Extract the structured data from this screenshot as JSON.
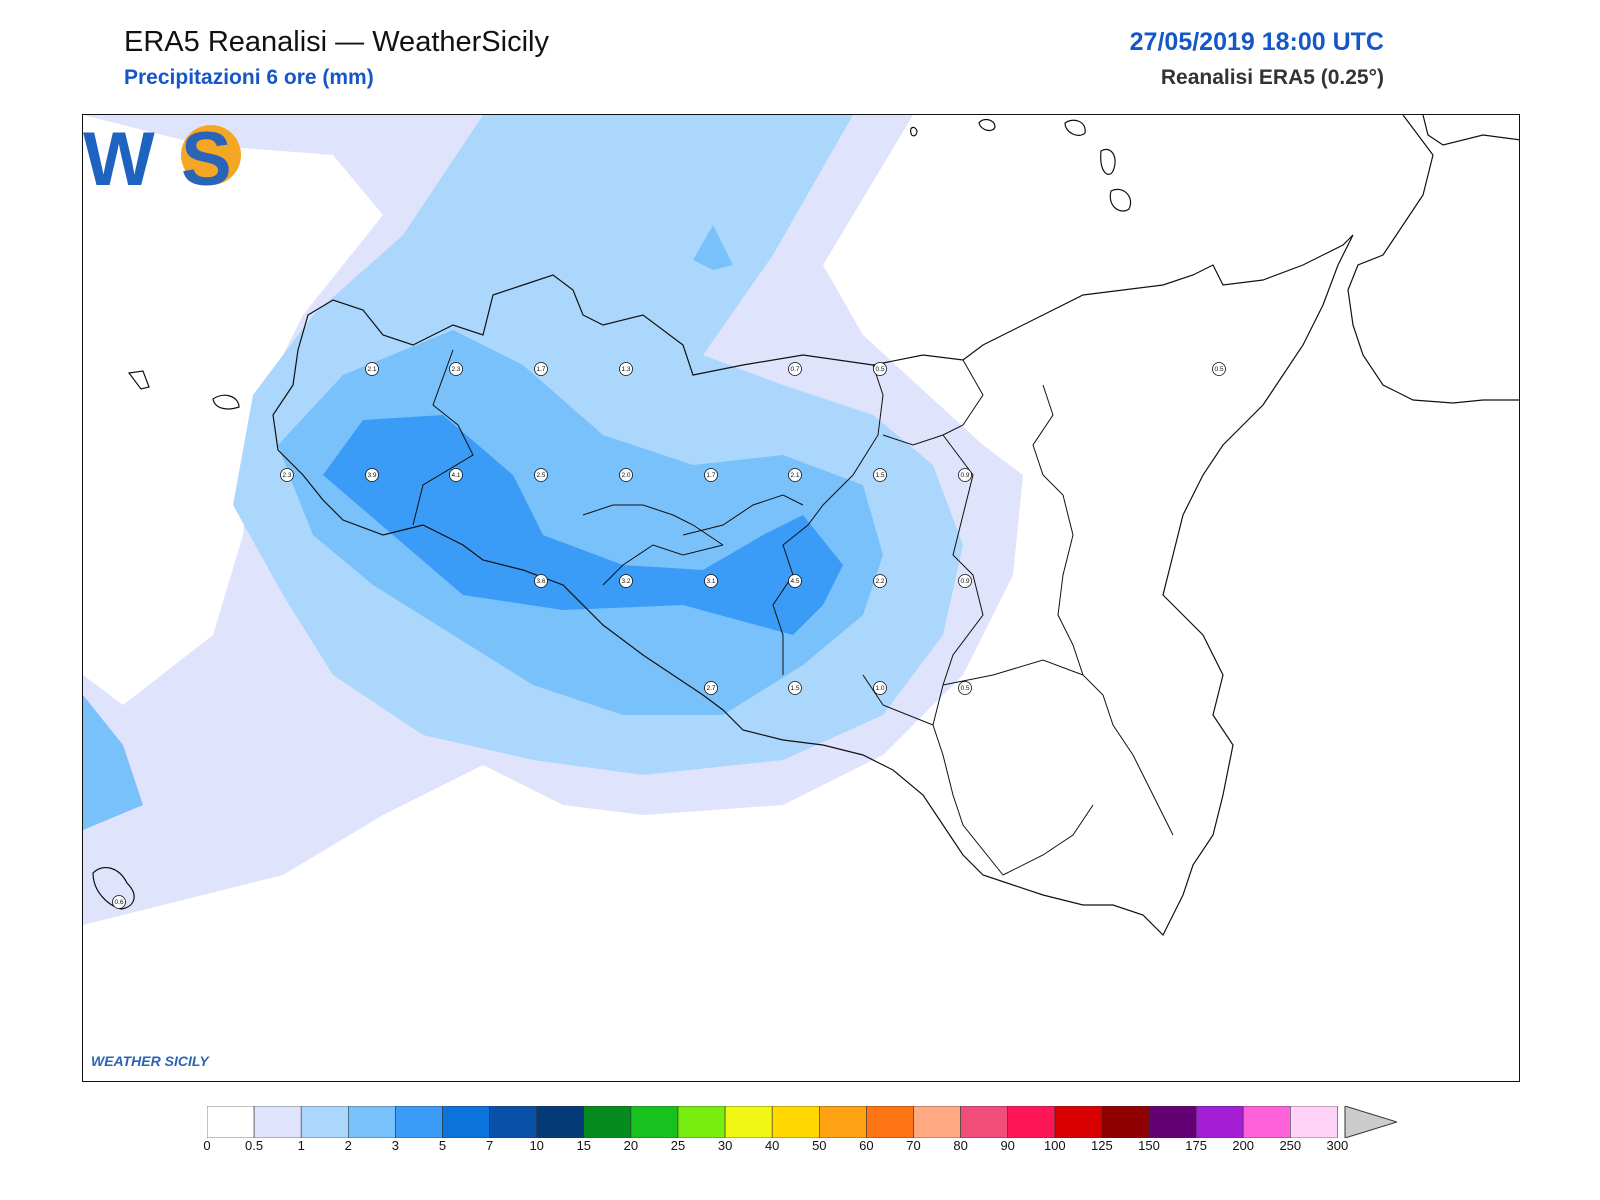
{
  "header": {
    "title": "ERA5 Reanalisi — WeatherSicily",
    "subtitle": "Precipitazioni 6 ore (mm)",
    "datetime": "27/05/2019 18:00 UTC",
    "source": "Reanalisi ERA5 (0.25°)"
  },
  "logo": {
    "text": "WS",
    "caption": "WEATHER SICILY"
  },
  "colorbar": {
    "ticks": [
      "0",
      "0.5",
      "1",
      "2",
      "3",
      "5",
      "7",
      "10",
      "15",
      "20",
      "25",
      "30",
      "40",
      "50",
      "60",
      "70",
      "80",
      "90",
      "100",
      "125",
      "150",
      "175",
      "200",
      "250",
      "300"
    ],
    "colors": [
      "#ffffff",
      "#e0e3fc",
      "#acd7fc",
      "#79c1fa",
      "#3a9cf6",
      "#0c72dc",
      "#0850a8",
      "#053a78",
      "#038c1d",
      "#17c21e",
      "#77ee10",
      "#f0f715",
      "#ffd900",
      "#ffa315",
      "#ff7515",
      "#ffaa82",
      "#f04d7a",
      "#ff1656",
      "#d80000",
      "#900000",
      "#650074",
      "#a41ed6",
      "#ff61d8",
      "#ffd2f7"
    ],
    "extend_color": "#cccccc"
  },
  "map": {
    "precip_colors": {
      "level_0_5": "#e0e3fc",
      "level_1": "#acd7fc",
      "level_2": "#79c1fa",
      "level_3": "#3a9cf6"
    },
    "station_values": [
      {
        "label": "2.1"
      },
      {
        "label": "2.3"
      },
      {
        "label": "1.7"
      },
      {
        "label": "1.3"
      },
      {
        "label": "0.7"
      },
      {
        "label": "0.5"
      },
      {
        "label": "0.5"
      },
      {
        "label": "2.3"
      },
      {
        "label": "3.9"
      },
      {
        "label": "4.1"
      },
      {
        "label": "2.5"
      },
      {
        "label": "2.0"
      },
      {
        "label": "1.7"
      },
      {
        "label": "2.1"
      },
      {
        "label": "1.5"
      },
      {
        "label": "0.9"
      },
      {
        "label": "3.6"
      },
      {
        "label": "3.2"
      },
      {
        "label": "3.1"
      },
      {
        "label": "4.5"
      },
      {
        "label": "2.2"
      },
      {
        "label": "0.9"
      },
      {
        "label": "2.7"
      },
      {
        "label": "1.5"
      },
      {
        "label": "1.0"
      },
      {
        "label": "0.5"
      },
      {
        "label": "0.6"
      }
    ]
  }
}
